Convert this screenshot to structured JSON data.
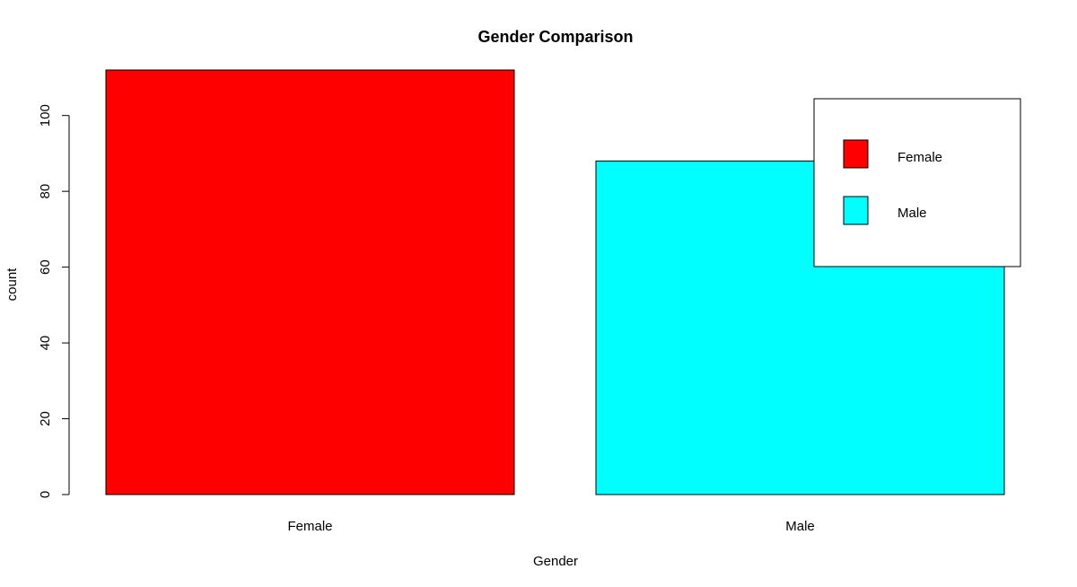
{
  "chart_data": {
    "type": "bar",
    "title": "Gender Comparison",
    "xlabel": "Gender",
    "ylabel": "count",
    "categories": [
      "Female",
      "Male"
    ],
    "values": [
      112,
      88
    ],
    "colors": [
      "#ff0000",
      "#00ffff"
    ],
    "ylim": [
      0,
      112
    ],
    "yticks": [
      0,
      20,
      40,
      60,
      80,
      100
    ],
    "grid": false,
    "legend": {
      "position": "top-right",
      "entries": [
        {
          "label": "Female",
          "color": "#ff0000"
        },
        {
          "label": "Male",
          "color": "#00ffff"
        }
      ]
    }
  }
}
